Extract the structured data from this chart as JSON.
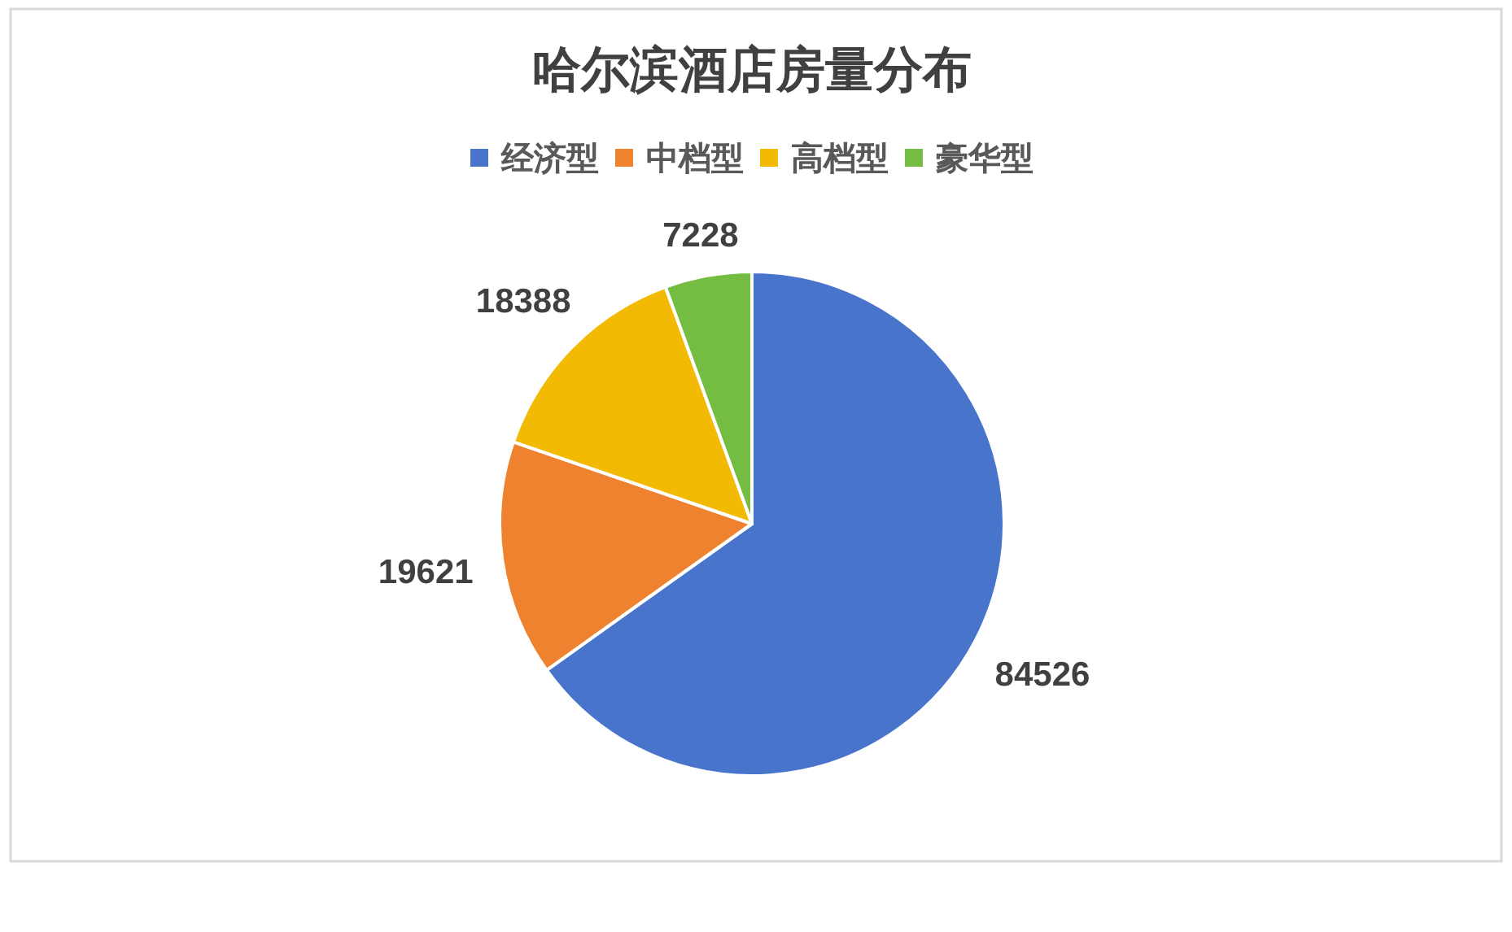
{
  "chart_data": {
    "type": "pie",
    "title": "哈尔滨酒店房量分布",
    "categories": [
      "经济型",
      "中档型",
      "高档型",
      "豪华型"
    ],
    "values": [
      84526,
      19621,
      18388,
      7228
    ],
    "colors": [
      "#4874cb",
      "#ee822f",
      "#f2ba02",
      "#75bd42"
    ],
    "data_labels": true,
    "legend": "top"
  }
}
